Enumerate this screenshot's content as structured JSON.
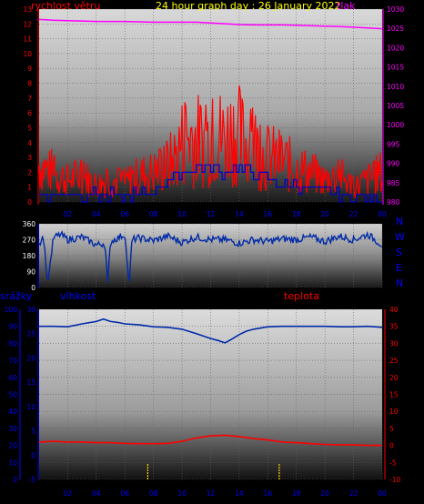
{
  "header": {
    "title": "24 hour graph day : 26 January 2022",
    "left_label": "rychlost větru",
    "right_label": "tlak"
  },
  "compass": {
    "labels": [
      "N",
      "W",
      "S",
      "E",
      "N"
    ]
  },
  "bottom_header": {
    "label_a": "srážky",
    "label_b": "vlhkost",
    "label_c": "teplota"
  },
  "colors": {
    "wind": "#ff0000",
    "wind_mean": "#0000cc",
    "pressure": "#ff00ff",
    "direction": "#002aa8",
    "humidity": "#002aa8",
    "temperature": "#ff0000",
    "rain": "#ffd400",
    "title": "#ffff00",
    "axis_left": "#ff0000",
    "axis_right": "#ff00ff",
    "axis_rain": "#0000ff",
    "axis_temp": "#ff0000",
    "compass": "#0000ff"
  },
  "chart_data": [
    {
      "type": "line",
      "title": "24 hour graph day : 26 January 2022",
      "x_ticks": [
        "02",
        "04",
        "06",
        "08",
        "10",
        "12",
        "14",
        "16",
        "18",
        "20",
        "22",
        "00"
      ],
      "y_left_ticks": [
        "0",
        "1",
        "2",
        "3",
        "4",
        "5",
        "6",
        "7",
        "8",
        "9",
        "10",
        "11",
        "12",
        "13"
      ],
      "y_right_ticks": [
        "980",
        "985",
        "990",
        "995",
        "1000",
        "1005",
        "1010",
        "1015",
        "1020",
        "1025",
        "1030"
      ],
      "ylim_left": [
        0,
        13
      ],
      "ylim_right": [
        980,
        1030
      ],
      "series": [
        {
          "name": "rychlost větru",
          "axis": "left",
          "x": [
            0,
            1,
            2,
            3,
            4,
            5,
            6,
            7,
            8,
            9,
            9.5,
            10,
            10.5,
            11,
            11.5,
            12,
            12.5,
            13,
            13.5,
            14,
            14.5,
            15,
            15.5,
            16,
            17,
            18,
            19,
            20,
            21,
            22,
            23,
            24
          ],
          "values": [
            2.5,
            2.0,
            1.5,
            1.8,
            1.2,
            1.5,
            1.3,
            1.8,
            2.0,
            2.5,
            3.0,
            4.0,
            4.5,
            4.2,
            4.0,
            4.3,
            4.5,
            4.2,
            4.8,
            4.5,
            3.8,
            4.0,
            3.2,
            3.0,
            2.8,
            2.2,
            2.0,
            1.5,
            1.8,
            1.0,
            1.5,
            2.0
          ]
        },
        {
          "name": "",
          "axis": "left",
          "x": [
            0,
            2,
            4,
            6,
            8,
            10,
            11,
            12,
            13,
            14,
            15,
            16,
            18,
            20,
            21,
            22,
            24
          ],
          "values": [
            0.5,
            0.5,
            0.5,
            0.3,
            0.8,
            2.0,
            2.3,
            2.2,
            2.1,
            2.3,
            2.0,
            1.5,
            1.0,
            0.8,
            0.4,
            0.2,
            0.3
          ]
        },
        {
          "name": "tlak",
          "axis": "right",
          "x": [
            0,
            1,
            2,
            3,
            4,
            5,
            6,
            7,
            8,
            9,
            10,
            11,
            12,
            13,
            14,
            15,
            16,
            17,
            18,
            19,
            20,
            21,
            22,
            23,
            24
          ],
          "values": [
            1027.3,
            1027.1,
            1027.0,
            1026.9,
            1026.8,
            1026.8,
            1026.8,
            1026.7,
            1026.6,
            1026.6,
            1026.6,
            1026.6,
            1026.4,
            1026.2,
            1026.0,
            1025.9,
            1025.9,
            1025.9,
            1025.8,
            1025.7,
            1025.6,
            1025.5,
            1025.3,
            1025.1,
            1024.9
          ]
        }
      ]
    },
    {
      "type": "line",
      "x_ticks": [
        "02",
        "04",
        "06",
        "08",
        "10",
        "12",
        "14",
        "16",
        "18",
        "20",
        "22",
        "00"
      ],
      "y_ticks": [
        "0",
        "90",
        "180",
        "270",
        "360"
      ],
      "ylim": [
        0,
        360
      ],
      "series": [
        {
          "name": "",
          "x": [
            0,
            0.3,
            0.6,
            1,
            1.5,
            2,
            3,
            4,
            4.6,
            4.8,
            5,
            6,
            6.3,
            6.5,
            7,
            8,
            9,
            10,
            11,
            12,
            13,
            14,
            15,
            16,
            17,
            18,
            19,
            20,
            21,
            22,
            23,
            24
          ],
          "values": [
            250,
            290,
            20,
            280,
            300,
            270,
            285,
            240,
            250,
            30,
            260,
            300,
            10,
            270,
            280,
            265,
            290,
            255,
            285,
            270,
            270,
            250,
            270,
            260,
            275,
            270,
            285,
            260,
            290,
            270,
            300,
            240
          ]
        }
      ]
    },
    {
      "type": "line",
      "x_ticks": [
        "02",
        "04",
        "06",
        "08",
        "10",
        "12",
        "14",
        "16",
        "18",
        "20",
        "22",
        "00"
      ],
      "y_rain_ticks": [
        "0",
        "10",
        "20",
        "30",
        "40",
        "50",
        "60",
        "70",
        "80",
        "90",
        "100"
      ],
      "y_hum_ticks": [
        "-5",
        "0",
        "5",
        "10",
        "15",
        "20",
        "25",
        "30"
      ],
      "y_temp_ticks": [
        "-10",
        "-5",
        "0",
        "5",
        "10",
        "15",
        "20",
        "25",
        "30",
        "35",
        "40"
      ],
      "ylim_rain": [
        0,
        100
      ],
      "ylim_hum": [
        -5,
        30
      ],
      "ylim_temp": [
        -10,
        40
      ],
      "series": [
        {
          "name": "vlhkost",
          "axis": "hum",
          "x": [
            0,
            1,
            2,
            3,
            4,
            4.5,
            5,
            5.5,
            6,
            7,
            8,
            9,
            10,
            11,
            12,
            12.5,
            13,
            13.5,
            14,
            14.5,
            15,
            16,
            17,
            18,
            19,
            20,
            21,
            22,
            23,
            24
          ],
          "values": [
            26.5,
            26.5,
            26.4,
            27.0,
            27.5,
            28.0,
            27.5,
            27.3,
            27.0,
            26.8,
            26.4,
            26.3,
            25.9,
            25.0,
            24.0,
            23.6,
            23.1,
            23.9,
            24.8,
            25.5,
            25.9,
            26.4,
            26.5,
            26.5,
            26.5,
            26.5,
            26.4,
            26.4,
            26.5,
            26.3
          ]
        },
        {
          "name": "teplota",
          "axis": "temp",
          "x": [
            0,
            1,
            2,
            3,
            4,
            5,
            6,
            7,
            8,
            9,
            10,
            11,
            12,
            13,
            14,
            15,
            16,
            17,
            18,
            19,
            20,
            21,
            22,
            23,
            24
          ],
          "values": [
            1.0,
            1.2,
            1.0,
            1.0,
            0.8,
            0.8,
            0.6,
            0.5,
            0.5,
            0.6,
            1.2,
            2.2,
            2.8,
            3.0,
            2.6,
            2.0,
            1.6,
            1.0,
            0.8,
            0.5,
            0.3,
            0.2,
            0.2,
            0.0,
            0.0
          ]
        },
        {
          "name": "srážky",
          "axis": "rain",
          "x": [
            7.6,
            16.8
          ],
          "values": [
            9.5,
            9.5
          ]
        }
      ]
    }
  ]
}
